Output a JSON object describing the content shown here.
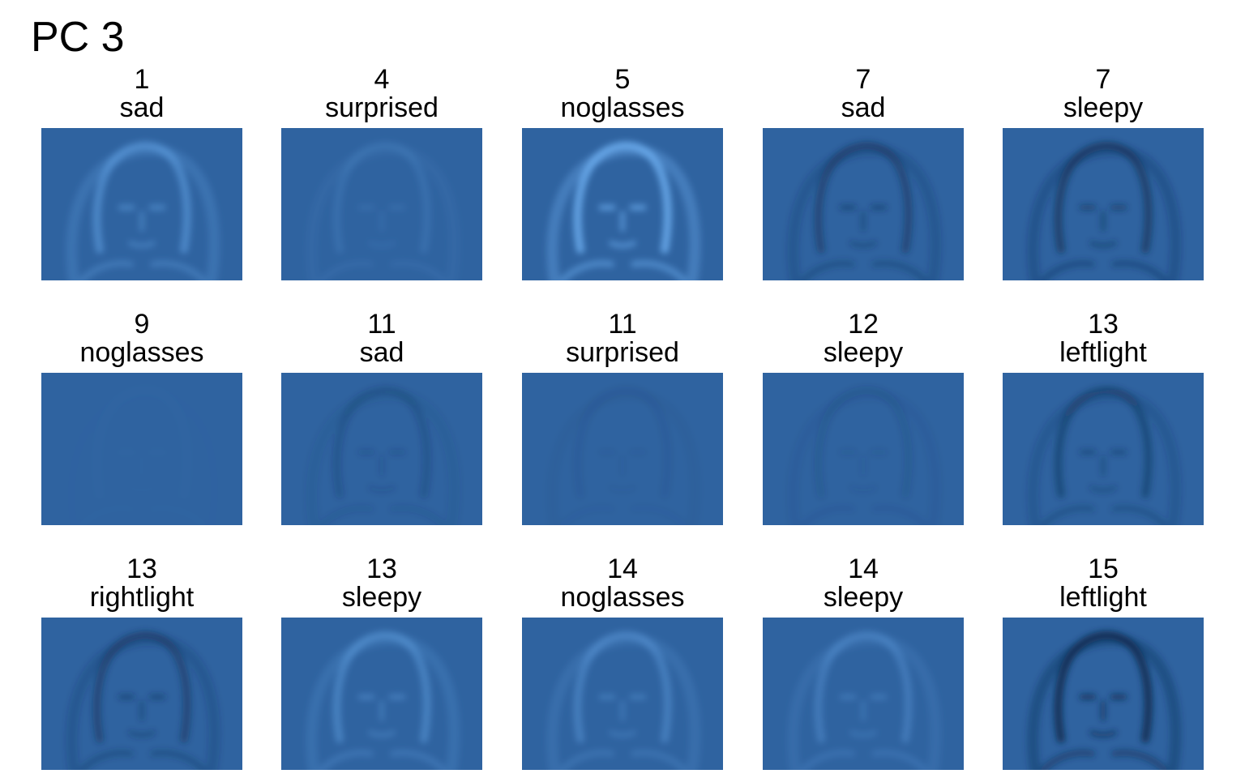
{
  "title": "PC 3",
  "panel_color": "#2f63a0",
  "panels": [
    {
      "subject": "1",
      "condition": "sad",
      "tone": "light",
      "strength": 0.55
    },
    {
      "subject": "4",
      "condition": "surprised",
      "tone": "light",
      "strength": 0.18
    },
    {
      "subject": "5",
      "condition": "noglasses",
      "tone": "light",
      "strength": 0.95
    },
    {
      "subject": "7",
      "condition": "sad",
      "tone": "dark",
      "strength": 0.55
    },
    {
      "subject": "7",
      "condition": "sleepy",
      "tone": "dark",
      "strength": 0.7
    },
    {
      "subject": "9",
      "condition": "noglasses",
      "tone": "light",
      "strength": 0.02
    },
    {
      "subject": "11",
      "condition": "sad",
      "tone": "dark",
      "strength": 0.25
    },
    {
      "subject": "11",
      "condition": "surprised",
      "tone": "dark",
      "strength": 0.08
    },
    {
      "subject": "12",
      "condition": "sleepy",
      "tone": "dark",
      "strength": 0.15
    },
    {
      "subject": "13",
      "condition": "leftlight",
      "tone": "dark",
      "strength": 0.5
    },
    {
      "subject": "13",
      "condition": "rightlight",
      "tone": "dark",
      "strength": 0.55
    },
    {
      "subject": "13",
      "condition": "sleepy",
      "tone": "light",
      "strength": 0.45
    },
    {
      "subject": "14",
      "condition": "noglasses",
      "tone": "light",
      "strength": 0.4
    },
    {
      "subject": "14",
      "condition": "sleepy",
      "tone": "light",
      "strength": 0.35
    },
    {
      "subject": "15",
      "condition": "leftlight",
      "tone": "dark",
      "strength": 1.0
    }
  ]
}
